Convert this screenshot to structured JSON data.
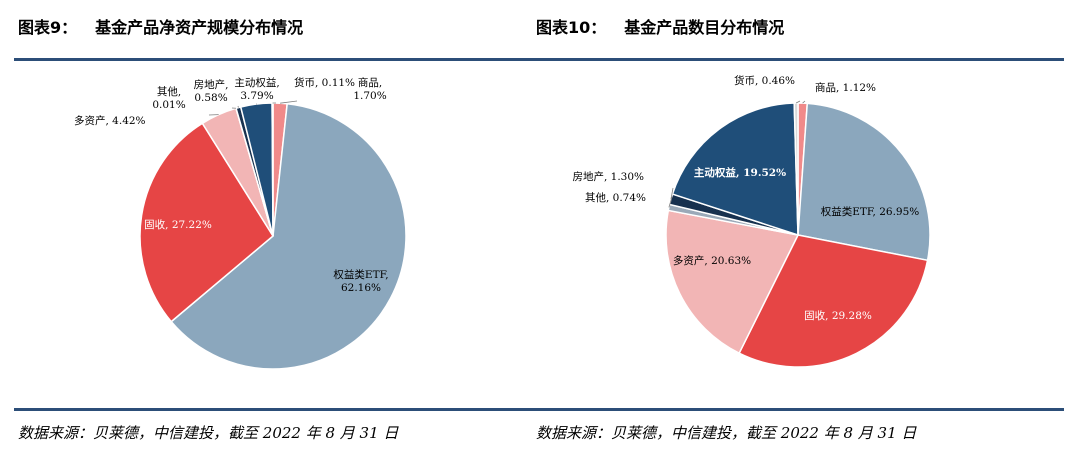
{
  "charts": [
    {
      "fig_label": "图表9：",
      "title": "基金产品净资产规模分布情况",
      "source": "数据来源：贝莱德，中信建投，截至 2022 年 8 月 31 日"
    },
    {
      "fig_label": "图表10：",
      "title": "基金产品数目分布情况",
      "source": "数据来源：贝莱德，中信建投，截至 2022 年 8 月 31 日"
    }
  ],
  "chart_data": [
    {
      "type": "pie",
      "title": "基金产品净资产规模分布情况",
      "unit": "%",
      "slices": [
        {
          "name": "商品",
          "value": 1.7,
          "value_label": "1.70%",
          "color": "#f08a8a"
        },
        {
          "name": "权益类ETF",
          "value": 62.16,
          "value_label": "62.16%",
          "color": "#8ba7bd"
        },
        {
          "name": "固收",
          "value": 27.22,
          "value_label": "27.22%",
          "color": "#e64545"
        },
        {
          "name": "多资产",
          "value": 4.42,
          "value_label": "4.42%",
          "color": "#f2b5b5"
        },
        {
          "name": "其他",
          "value": 0.01,
          "value_label": "0.01%",
          "color": "#9aa9b8"
        },
        {
          "name": "房地产",
          "value": 0.58,
          "value_label": "0.58%",
          "color": "#17314f"
        },
        {
          "name": "主动权益",
          "value": 3.79,
          "value_label": "3.79%",
          "color": "#1f4e79"
        },
        {
          "name": "货币",
          "value": 0.11,
          "value_label": "0.11%",
          "color": "#d9d9d9"
        }
      ]
    },
    {
      "type": "pie",
      "title": "基金产品数目分布情况",
      "unit": "%",
      "slices": [
        {
          "name": "商品",
          "value": 1.12,
          "value_label": "1.12%",
          "color": "#f08a8a"
        },
        {
          "name": "权益类ETF",
          "value": 26.95,
          "value_label": "26.95%",
          "color": "#8ba7bd"
        },
        {
          "name": "固收",
          "value": 29.28,
          "value_label": "29.28%",
          "color": "#e64545"
        },
        {
          "name": "多资产",
          "value": 20.63,
          "value_label": "20.63%",
          "color": "#f2b5b5"
        },
        {
          "name": "其他",
          "value": 0.74,
          "value_label": "0.74%",
          "color": "#9aa9b8"
        },
        {
          "name": "房地产",
          "value": 1.3,
          "value_label": "1.30%",
          "color": "#17314f"
        },
        {
          "name": "主动权益",
          "value": 19.52,
          "value_label": "19.52%",
          "color": "#1f4e79"
        },
        {
          "name": "货币",
          "value": 0.46,
          "value_label": "0.46%",
          "color": "#d9d9d9"
        }
      ]
    }
  ]
}
